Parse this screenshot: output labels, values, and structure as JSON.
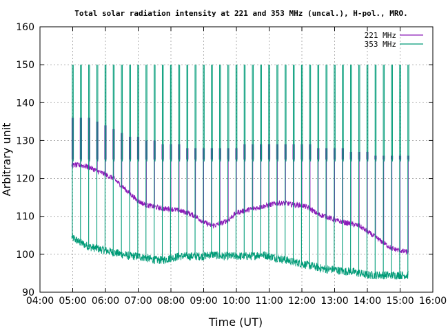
{
  "chart_data": {
    "type": "line",
    "title": "Total solar radiation intensity at 221 and 353 MHz (uncal.), H-pol., MRO.",
    "xlabel": "Time (UT)",
    "ylabel": "Arbitrary unit",
    "xlim": [
      4.0,
      16.0
    ],
    "ylim": [
      90,
      160
    ],
    "x_ticks": [
      "04:00",
      "05:00",
      "06:00",
      "07:00",
      "08:00",
      "09:00",
      "10:00",
      "11:00",
      "12:00",
      "13:00",
      "14:00",
      "15:00",
      "16:00"
    ],
    "y_ticks": [
      90,
      100,
      110,
      120,
      130,
      140,
      150,
      160
    ],
    "grid": "dashed",
    "legend_position": "top-right",
    "calibration_spikes": {
      "times": [
        5.0,
        5.25,
        5.5,
        5.75,
        6.0,
        6.25,
        6.5,
        6.75,
        7.0,
        7.25,
        7.5,
        7.75,
        8.0,
        8.25,
        8.5,
        8.75,
        9.0,
        9.25,
        9.5,
        9.75,
        10.0,
        10.25,
        10.5,
        10.75,
        11.0,
        11.25,
        11.5,
        11.75,
        12.0,
        12.25,
        12.5,
        12.75,
        13.0,
        13.25,
        13.5,
        13.75,
        14.0,
        14.25,
        14.5,
        14.75,
        15.0,
        15.25
      ],
      "peak_221": [
        136,
        136,
        136,
        135,
        134,
        133,
        132,
        131,
        131,
        130,
        130,
        129,
        129,
        129,
        128,
        128,
        128,
        128,
        128,
        128,
        128,
        129,
        129,
        129,
        129,
        129,
        129,
        129,
        129,
        129,
        128,
        128,
        128,
        128,
        127,
        127,
        127,
        126,
        126,
        126,
        126,
        126
      ],
      "floor_221": 125,
      "peak_353": 150,
      "floor_353": 94
    },
    "series": [
      {
        "name": "221 MHz",
        "color": "#8b1ab8",
        "x": [
          4.97,
          5.25,
          5.5,
          5.75,
          6.0,
          6.25,
          6.5,
          6.75,
          7.0,
          7.25,
          7.5,
          7.75,
          8.0,
          8.25,
          8.5,
          8.75,
          9.0,
          9.25,
          9.5,
          9.75,
          10.0,
          10.25,
          10.5,
          10.75,
          11.0,
          11.25,
          11.5,
          11.75,
          12.0,
          12.25,
          12.5,
          12.75,
          13.0,
          13.25,
          13.5,
          13.75,
          14.0,
          14.25,
          14.5,
          14.75,
          15.0,
          15.25
        ],
        "values": [
          123.5,
          123.5,
          123,
          122,
          121,
          120,
          118,
          116,
          114,
          113,
          112.5,
          112,
          112,
          111.5,
          111,
          110,
          108.5,
          107.5,
          108,
          109,
          111,
          111.5,
          112,
          112.5,
          113,
          113.5,
          113.5,
          113,
          113,
          112,
          110.5,
          110,
          109,
          108.5,
          108,
          107.5,
          106,
          104.5,
          103,
          101.5,
          101,
          100.5
        ]
      },
      {
        "name": "353 MHz",
        "color": "#009b77",
        "x": [
          4.97,
          5.25,
          5.5,
          5.75,
          6.0,
          6.25,
          6.5,
          6.75,
          7.0,
          7.25,
          7.5,
          7.75,
          8.0,
          8.25,
          8.5,
          8.75,
          9.0,
          9.25,
          9.5,
          9.75,
          10.0,
          10.25,
          10.5,
          10.75,
          11.0,
          11.25,
          11.5,
          11.75,
          12.0,
          12.25,
          12.5,
          12.75,
          13.0,
          13.25,
          13.5,
          13.75,
          14.0,
          14.25,
          14.5,
          14.75,
          15.0,
          15.25
        ],
        "values": [
          104.5,
          103,
          102,
          101.5,
          101,
          100.5,
          100,
          99.5,
          99.5,
          99,
          98.5,
          98.5,
          99,
          99.5,
          99.5,
          99.5,
          99.5,
          100,
          99.5,
          99.5,
          99.5,
          99.5,
          99.5,
          100,
          99.5,
          99,
          98.5,
          98,
          97.5,
          97,
          96.5,
          96,
          96,
          95.5,
          95.5,
          95,
          94.5,
          94.5,
          94.5,
          94.5,
          94.5,
          94.5
        ]
      }
    ]
  }
}
